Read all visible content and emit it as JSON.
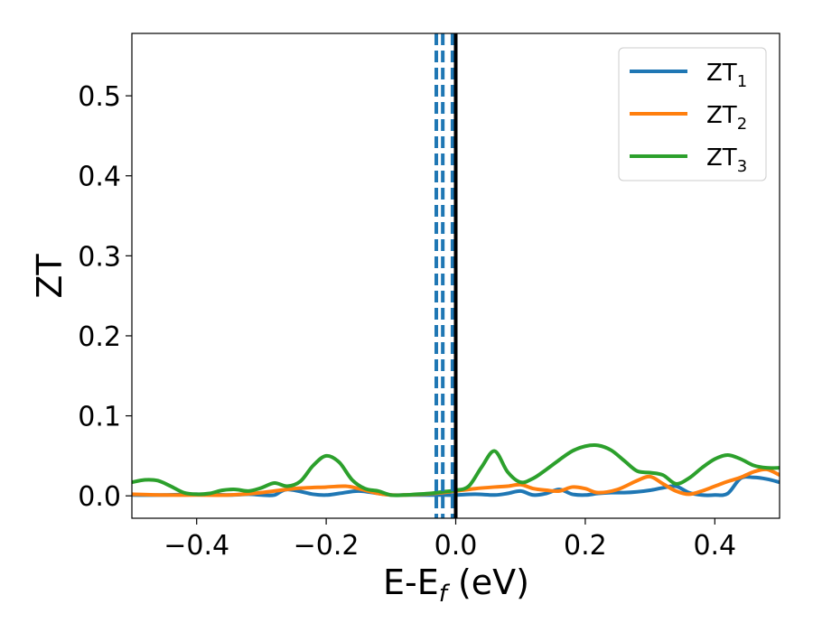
{
  "chart_data": {
    "type": "line",
    "xlabel_main": "E-E",
    "xlabel_sub": "f",
    "xlabel_unit": " (eV)",
    "ylabel": "ZT",
    "xlim": [
      -0.5,
      0.5
    ],
    "ylim": [
      -0.028,
      0.578
    ],
    "x_ticks": [
      -0.4,
      -0.2,
      0.0,
      0.2,
      0.4
    ],
    "x_tick_labels": [
      "−0.4",
      "−0.2",
      "0.0",
      "0.2",
      "0.4"
    ],
    "y_ticks": [
      0.0,
      0.1,
      0.2,
      0.3,
      0.4,
      0.5
    ],
    "y_tick_labels": [
      "0.0",
      "0.1",
      "0.2",
      "0.3",
      "0.4",
      "0.5"
    ],
    "grid": false,
    "legend_position": "top-right",
    "vertical_lines": [
      {
        "x": -0.03,
        "style": "dashed",
        "color": "#1f77b4"
      },
      {
        "x": -0.02,
        "style": "dashed",
        "color": "#1f77b4"
      },
      {
        "x": -0.005,
        "style": "dashed",
        "color": "#1f77b4"
      },
      {
        "x": 0.0,
        "style": "solid",
        "color": "#000000"
      }
    ],
    "series": [
      {
        "name_main": "ZT",
        "name_sub": "1",
        "color": "#1f77b4",
        "x": [
          -0.5,
          -0.45,
          -0.4,
          -0.35,
          -0.32,
          -0.3,
          -0.28,
          -0.26,
          -0.22,
          -0.2,
          -0.18,
          -0.15,
          -0.12,
          -0.1,
          -0.08,
          -0.05,
          -0.02,
          0.0,
          0.03,
          0.06,
          0.08,
          0.1,
          0.12,
          0.14,
          0.16,
          0.18,
          0.2,
          0.22,
          0.24,
          0.26,
          0.28,
          0.3,
          0.32,
          0.34,
          0.36,
          0.38,
          0.4,
          0.42,
          0.44,
          0.46,
          0.48,
          0.5
        ],
        "y": [
          0.001,
          0.001,
          0.002,
          0.001,
          0.002,
          0.001,
          0.001,
          0.008,
          0.002,
          0.001,
          0.003,
          0.006,
          0.003,
          0.001,
          0.001,
          0.001,
          0.001,
          0.001,
          0.002,
          0.001,
          0.003,
          0.006,
          0.001,
          0.003,
          0.008,
          0.002,
          0.001,
          0.003,
          0.004,
          0.004,
          0.005,
          0.007,
          0.01,
          0.012,
          0.004,
          0.001,
          0.001,
          0.003,
          0.022,
          0.023,
          0.021,
          0.017
        ]
      },
      {
        "name_main": "ZT",
        "name_sub": "2",
        "color": "#ff7f0e",
        "x": [
          -0.5,
          -0.45,
          -0.4,
          -0.35,
          -0.3,
          -0.25,
          -0.2,
          -0.17,
          -0.15,
          -0.12,
          -0.1,
          -0.08,
          -0.05,
          -0.02,
          0.0,
          0.03,
          0.06,
          0.08,
          0.1,
          0.12,
          0.14,
          0.16,
          0.18,
          0.2,
          0.22,
          0.25,
          0.28,
          0.3,
          0.32,
          0.34,
          0.36,
          0.38,
          0.4,
          0.42,
          0.44,
          0.46,
          0.48,
          0.5
        ],
        "y": [
          0.002,
          0.001,
          0.001,
          0.001,
          0.004,
          0.009,
          0.011,
          0.012,
          0.009,
          0.003,
          0.001,
          0.001,
          0.002,
          0.004,
          0.006,
          0.009,
          0.011,
          0.012,
          0.014,
          0.009,
          0.007,
          0.006,
          0.011,
          0.009,
          0.004,
          0.008,
          0.019,
          0.024,
          0.015,
          0.006,
          0.002,
          0.006,
          0.012,
          0.018,
          0.023,
          0.03,
          0.033,
          0.026
        ]
      },
      {
        "name_main": "ZT",
        "name_sub": "3",
        "color": "#2ca02c",
        "x": [
          -0.5,
          -0.48,
          -0.46,
          -0.44,
          -0.42,
          -0.4,
          -0.38,
          -0.36,
          -0.34,
          -0.32,
          -0.3,
          -0.28,
          -0.26,
          -0.24,
          -0.22,
          -0.2,
          -0.18,
          -0.16,
          -0.14,
          -0.12,
          -0.1,
          -0.08,
          -0.06,
          -0.04,
          -0.02,
          0.0,
          0.02,
          0.04,
          0.06,
          0.08,
          0.1,
          0.12,
          0.14,
          0.16,
          0.18,
          0.2,
          0.22,
          0.24,
          0.26,
          0.28,
          0.3,
          0.32,
          0.34,
          0.36,
          0.38,
          0.4,
          0.42,
          0.44,
          0.46,
          0.48,
          0.5
        ],
        "y": [
          0.017,
          0.02,
          0.019,
          0.012,
          0.004,
          0.002,
          0.003,
          0.007,
          0.008,
          0.006,
          0.01,
          0.016,
          0.012,
          0.018,
          0.038,
          0.05,
          0.042,
          0.02,
          0.009,
          0.006,
          0.001,
          0.001,
          0.002,
          0.003,
          0.005,
          0.007,
          0.012,
          0.036,
          0.056,
          0.03,
          0.017,
          0.022,
          0.033,
          0.045,
          0.056,
          0.062,
          0.063,
          0.057,
          0.044,
          0.031,
          0.029,
          0.026,
          0.015,
          0.022,
          0.035,
          0.046,
          0.051,
          0.046,
          0.038,
          0.035,
          0.035
        ]
      }
    ]
  }
}
